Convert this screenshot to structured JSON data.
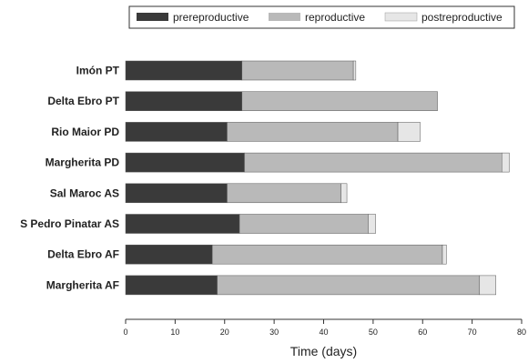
{
  "chart_data": {
    "type": "bar",
    "orientation": "horizontal",
    "stacked": true,
    "categories": [
      "Imón PT",
      "Delta Ebro PT",
      "Rio Maior PD",
      "Margherita PD",
      "Sal Maroc AS",
      "S Pedro Pinatar AS",
      "Delta Ebro AF",
      "Margherita AF"
    ],
    "series": [
      {
        "name": "prereproductive",
        "color": "#3a3a3a",
        "values": [
          23.5,
          23.5,
          20.5,
          24,
          20.5,
          23,
          17.5,
          18.5
        ]
      },
      {
        "name": "reproductive",
        "color": "#b9b9b9",
        "values": [
          22.5,
          39.5,
          34.5,
          52,
          23,
          26,
          46.5,
          53
        ]
      },
      {
        "name": "postreproductive",
        "color": "#e6e6e6",
        "values": [
          0.5,
          0,
          4.5,
          1.5,
          1.2,
          1.5,
          0.8,
          3.3
        ]
      }
    ],
    "xlabel": "Time (days)",
    "xlim": [
      0,
      80
    ],
    "xticks": [
      0,
      10,
      20,
      30,
      40,
      50,
      60,
      70,
      80
    ],
    "grid": false,
    "legend_position": "top"
  }
}
